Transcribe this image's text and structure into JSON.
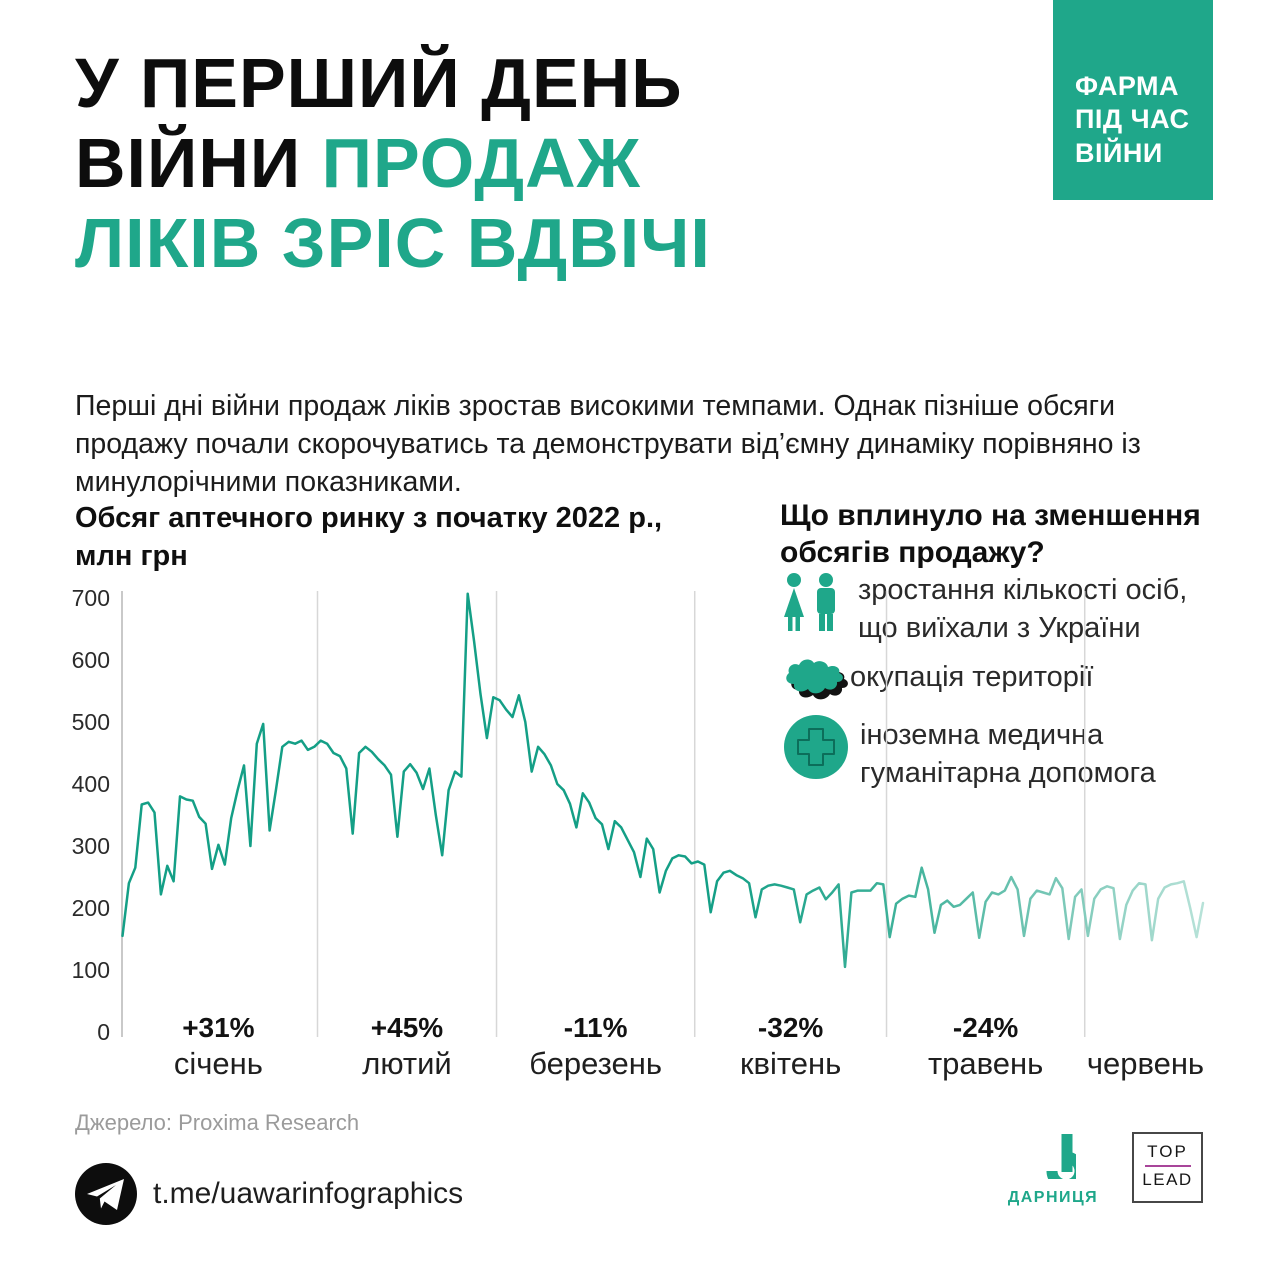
{
  "badge": {
    "lines": [
      "ФАРМА",
      "ПІД ЧАС",
      "ВІЙНИ"
    ],
    "bg_color": "#1fa78a"
  },
  "title": {
    "line1": "У ПЕРШИЙ ДЕНЬ",
    "line2_black": "ВІЙНИ",
    "line2_accent": "ПРОДАЖ",
    "line3_accent": "ЛІКІВ ЗРІС ВДВІЧІ"
  },
  "intro": "Перші дні війни продаж ліків зростав високими темпами. Однак пізніше обсяги продажу почали скорочуватись та демонструвати від’ємну динаміку порівняно із минулорічними показниками.",
  "chart_heading": {
    "line1": "Обсяг аптечного ринку з початку 2022 р.,",
    "line2": "млн грн"
  },
  "factors": {
    "heading_line1": "Що вплинуло на зменшення",
    "heading_line2": "обсягів продажу?",
    "items": [
      {
        "icon": "people-icon",
        "lines": [
          "зростання кількості осіб,",
          "що виїхали з України"
        ]
      },
      {
        "icon": "ukraine-map-icon",
        "lines": [
          "окупація території"
        ]
      },
      {
        "icon": "medical-cross-icon",
        "lines": [
          "іноземна медична",
          "гуманітарна допомога"
        ]
      }
    ]
  },
  "chart_data": {
    "type": "line",
    "title": "Обсяг аптечного ринку з початку 2022 р., млн грн",
    "ylabel": "млн грн",
    "y_ticks": [
      0,
      100,
      200,
      300,
      400,
      500,
      600,
      700
    ],
    "ylim": [
      0,
      700
    ],
    "grid": "vertical month boundaries only",
    "legend": "none",
    "line_color": "#149f86",
    "line_fade_to": "#b7e2d8",
    "grid_color": "#d7d7d7",
    "axis_color": "#c9c9c9",
    "months": [
      {
        "label": "січень",
        "pct": "+31%",
        "values": [
          155,
          240,
          265,
          367,
          370,
          354,
          222,
          268,
          243,
          380,
          375,
          373,
          347,
          336,
          263,
          302,
          270,
          345,
          390,
          430,
          300,
          465,
          497,
          325,
          390,
          460,
          468,
          465,
          470,
          455,
          460
        ]
      },
      {
        "label": "лютий",
        "pct": "+45%",
        "values": [
          470,
          465,
          450,
          445,
          425,
          320,
          450,
          460,
          452,
          440,
          430,
          415,
          315,
          420,
          432,
          418,
          392,
          425,
          350,
          285,
          390,
          420,
          412,
          707,
          630,
          545,
          474,
          540
        ]
      },
      {
        "label": "березень",
        "pct": "-11%",
        "values": [
          535,
          520,
          508,
          543,
          500,
          420,
          460,
          448,
          430,
          400,
          390,
          368,
          330,
          385,
          370,
          345,
          335,
          295,
          340,
          330,
          310,
          290,
          250,
          312,
          295,
          225,
          260,
          280,
          285,
          283,
          272
        ]
      },
      {
        "label": "квітень",
        "pct": "-32%",
        "values": [
          275,
          270,
          193,
          243,
          257,
          260,
          253,
          248,
          240,
          185,
          230,
          236,
          238,
          236,
          233,
          230,
          177,
          222,
          228,
          233,
          214,
          225,
          238,
          105,
          225,
          228,
          228,
          228,
          240,
          238
        ]
      },
      {
        "label": "травень",
        "pct": "-24%",
        "values": [
          153,
          207,
          215,
          220,
          218,
          265,
          230,
          160,
          205,
          212,
          202,
          205,
          215,
          225,
          152,
          210,
          225,
          222,
          228,
          250,
          230,
          155,
          215,
          228,
          225,
          222,
          248,
          232,
          150,
          218,
          230
        ]
      },
      {
        "label": "червень",
        "pct": "",
        "values": [
          155,
          215,
          230,
          235,
          232,
          150,
          205,
          228,
          240,
          238,
          148,
          215,
          233,
          238,
          240,
          243,
          200,
          153,
          208
        ]
      }
    ]
  },
  "source": "Джерело: Proxima Research",
  "telegram": {
    "handle": "t.me/uawarinfographics"
  },
  "logos": {
    "darnytsia": "ДАРНИЦЯ",
    "toplead_top": "TOP",
    "toplead_bottom": "LEAD",
    "toplead_line_color": "#a8459a"
  }
}
